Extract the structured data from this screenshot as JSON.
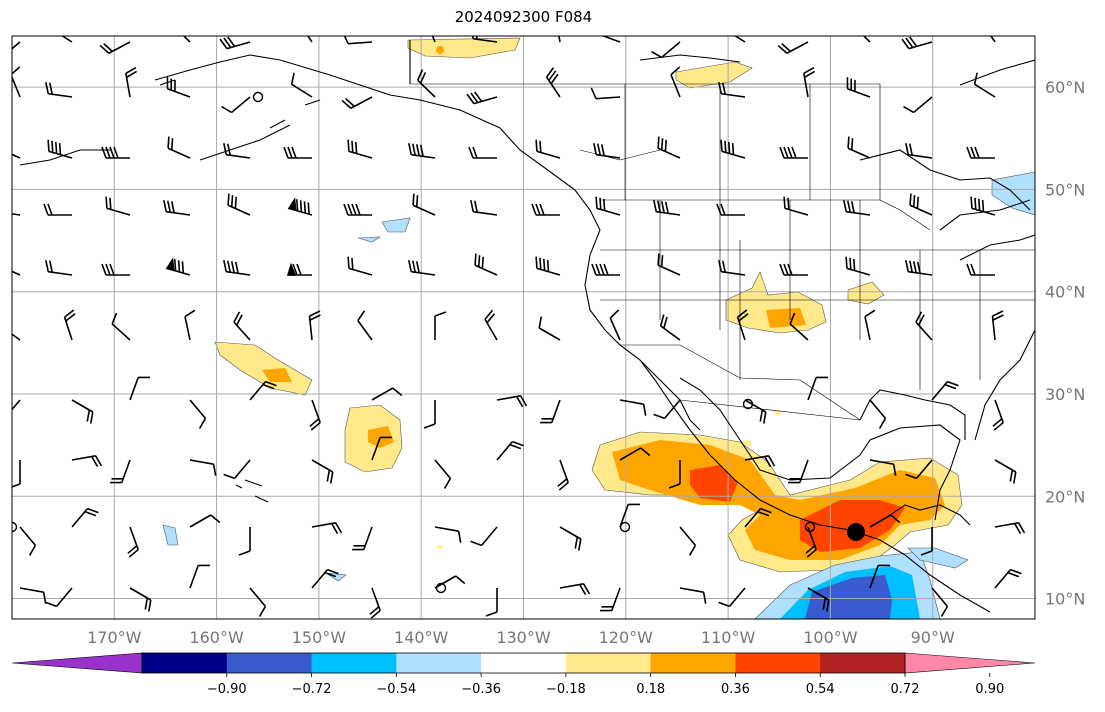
{
  "title": "2024092300 F084",
  "map": {
    "lon_range": [
      -180,
      -80
    ],
    "lat_range": [
      8,
      65
    ],
    "lat_ticks": [
      {
        "value": 60,
        "label": "60°N"
      },
      {
        "value": 50,
        "label": "50°N"
      },
      {
        "value": 40,
        "label": "40°N"
      },
      {
        "value": 30,
        "label": "30°N"
      },
      {
        "value": 20,
        "label": "20°N"
      },
      {
        "value": 10,
        "label": "10°N"
      }
    ],
    "lon_ticks": [
      {
        "value": -170,
        "label": "170°W"
      },
      {
        "value": -160,
        "label": "160°W"
      },
      {
        "value": -150,
        "label": "150°W"
      },
      {
        "value": -140,
        "label": "140°W"
      },
      {
        "value": -130,
        "label": "130°W"
      },
      {
        "value": -120,
        "label": "120°W"
      },
      {
        "value": -110,
        "label": "110°W"
      },
      {
        "value": -100,
        "label": "100°W"
      },
      {
        "value": -90,
        "label": "90°W"
      }
    ],
    "grid": true,
    "storm_center": {
      "lon": -97.5,
      "lat": 16.5
    }
  },
  "colorbar": {
    "colors": [
      "#9932cc",
      "#00008b",
      "#3a5bcd",
      "#00bfff",
      "#b0e0ff",
      "#ffffff",
      "#ffe98a",
      "#ffa500",
      "#ff4500",
      "#b22222",
      "#ff88aa"
    ],
    "labels": [
      "−0.90",
      "−0.72",
      "−0.54",
      "−0.36",
      "−0.18",
      "0.18",
      "0.36",
      "0.54",
      "0.72",
      "0.90"
    ]
  },
  "icons": {
    "storm_marker": "filled-circle-icon",
    "wind_barbs": "wind-barb-icon"
  }
}
